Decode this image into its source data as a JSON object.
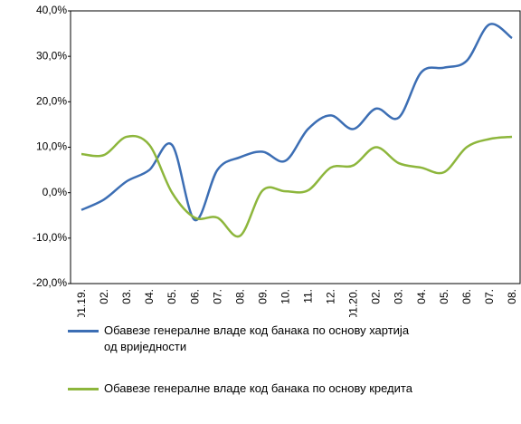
{
  "chart_data": {
    "type": "line",
    "categories": [
      "01.19.",
      "02.",
      "03.",
      "04.",
      "05.",
      "06.",
      "07.",
      "08.",
      "09.",
      "10.",
      "11.",
      "12.",
      "01.20.",
      "02.",
      "03.",
      "04.",
      "05.",
      "06.",
      "07.",
      "08."
    ],
    "series": [
      {
        "name": "Обавезе генералне владе код банака по основу хартија од вриједности",
        "color": "#3c6eb4",
        "values": [
          -3.8,
          -1.5,
          2.5,
          5,
          10.5,
          -6,
          5,
          7.8,
          9,
          7,
          14,
          17,
          14,
          18.5,
          16.5,
          26.5,
          27.5,
          29,
          37,
          34
        ]
      },
      {
        "name": "Обавезе генералне владе код банака по основу кредита",
        "color": "#8db63c",
        "values": [
          8.5,
          8.3,
          12.3,
          10.5,
          0,
          -5.5,
          -5.5,
          -9.5,
          0.5,
          0.3,
          0.5,
          5.5,
          6,
          10,
          6.5,
          5.5,
          4.5,
          10,
          11.8,
          12.3
        ]
      }
    ],
    "ylim": [
      -20,
      40
    ],
    "yticks": [
      {
        "value": -20,
        "label": "-20,0%"
      },
      {
        "value": -10,
        "label": "-10,0%"
      },
      {
        "value": 0,
        "label": "0,0%"
      },
      {
        "value": 10,
        "label": "10,0%"
      },
      {
        "value": 20,
        "label": "20,0%"
      },
      {
        "value": 30,
        "label": "30,0%"
      },
      {
        "value": 40,
        "label": "40,0%"
      }
    ],
    "grid": false
  }
}
